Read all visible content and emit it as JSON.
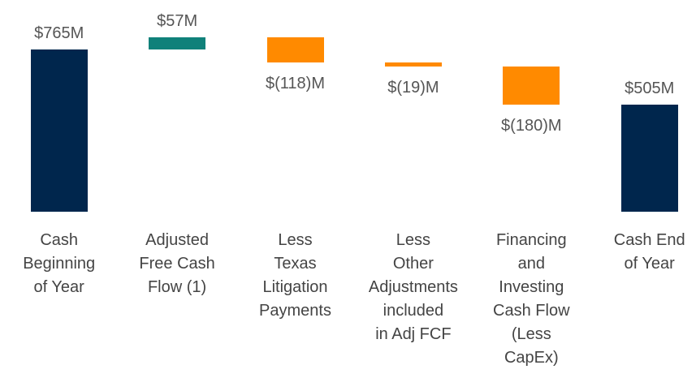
{
  "chart_data": {
    "type": "waterfall",
    "categories": [
      "Cash\nBeginning\nof Year",
      "Adjusted\nFree Cash\nFlow (1)",
      "Less\nTexas\nLitigation\nPayments",
      "Less\nOther\nAdjustments\nincluded\nin Adj FCF",
      "Financing\nand\nInvesting\nCash Flow\n(Less\nCapEx)",
      "Cash End\nof Year"
    ],
    "values": [
      765,
      57,
      -118,
      -19,
      -180,
      505
    ],
    "value_labels": [
      "$765M",
      "$57M",
      "$(118)M",
      "$(19)M",
      "$(180)M",
      "$505M"
    ],
    "kinds": [
      "total",
      "delta",
      "delta",
      "delta",
      "delta",
      "total"
    ],
    "colors": {
      "total": "#00264d",
      "increase": "#10817a",
      "decrease": "#ff8a00"
    }
  }
}
